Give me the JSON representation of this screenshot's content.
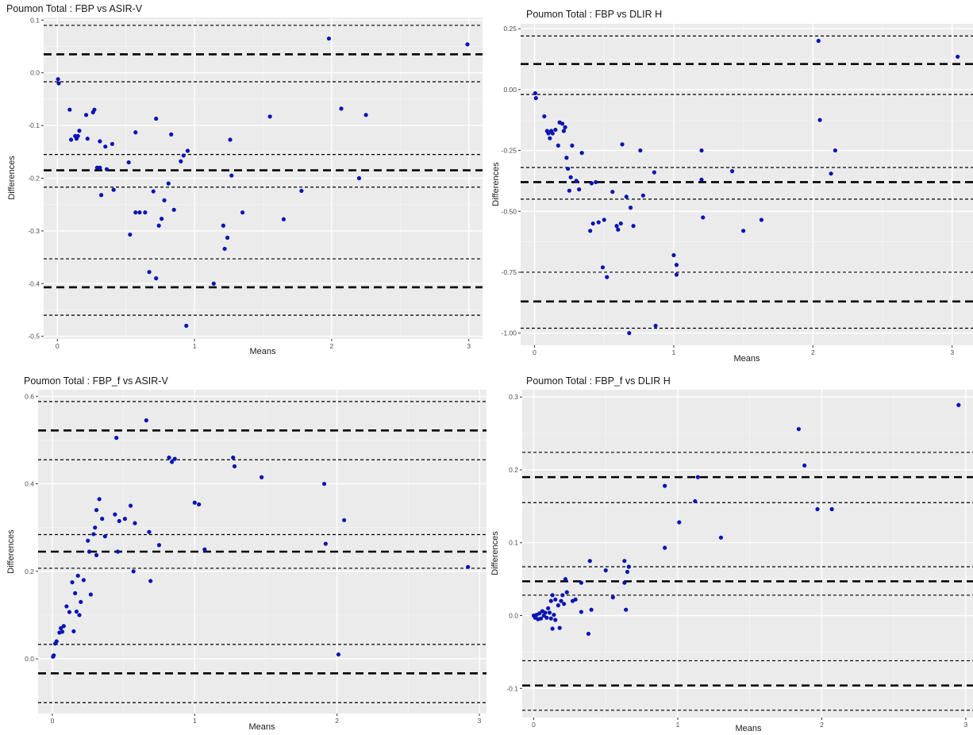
{
  "chart_data": [
    {
      "type": "scatter",
      "title": "Poumon Total : FBP vs ASIR-V",
      "xlabel": "Means",
      "ylabel": "Differences",
      "xlim": [
        -0.1,
        3.1
      ],
      "ylim": [
        -0.505,
        0.105
      ],
      "xticks": [
        0,
        1,
        2,
        3
      ],
      "yticks": [
        0.1,
        0.0,
        -0.1,
        -0.2,
        -0.3,
        -0.4,
        -0.5
      ],
      "ytick_labels": [
        "0.1",
        "0.0",
        "-0.1",
        "-0.2",
        "-0.3",
        "-0.4",
        "-0.5"
      ],
      "hlines": [
        {
          "y": 0.035,
          "style": "thick"
        },
        {
          "y": 0.09,
          "style": "thin"
        },
        {
          "y": -0.017,
          "style": "thin"
        },
        {
          "y": -0.185,
          "style": "thick"
        },
        {
          "y": -0.155,
          "style": "thin"
        },
        {
          "y": -0.217,
          "style": "thin"
        },
        {
          "y": -0.407,
          "style": "thick"
        },
        {
          "y": -0.353,
          "style": "thin"
        },
        {
          "y": -0.46,
          "style": "thin"
        }
      ],
      "points": [
        [
          0.005,
          -0.012
        ],
        [
          0.01,
          -0.02
        ],
        [
          0.09,
          -0.07
        ],
        [
          0.1,
          -0.127
        ],
        [
          0.13,
          -0.12
        ],
        [
          0.14,
          -0.125
        ],
        [
          0.15,
          -0.12
        ],
        [
          0.16,
          -0.11
        ],
        [
          0.21,
          -0.08
        ],
        [
          0.22,
          -0.125
        ],
        [
          0.26,
          -0.075
        ],
        [
          0.27,
          -0.07
        ],
        [
          0.29,
          -0.18
        ],
        [
          0.31,
          -0.13
        ],
        [
          0.31,
          -0.18
        ],
        [
          0.32,
          -0.232
        ],
        [
          0.35,
          -0.14
        ],
        [
          0.36,
          -0.183
        ],
        [
          0.4,
          -0.135
        ],
        [
          0.41,
          -0.222
        ],
        [
          0.52,
          -0.17
        ],
        [
          0.53,
          -0.307
        ],
        [
          0.57,
          -0.113
        ],
        [
          0.57,
          -0.265
        ],
        [
          0.6,
          -0.265
        ],
        [
          0.64,
          -0.265
        ],
        [
          0.67,
          -0.378
        ],
        [
          0.7,
          -0.225
        ],
        [
          0.72,
          -0.087
        ],
        [
          0.72,
          -0.39
        ],
        [
          0.74,
          -0.29
        ],
        [
          0.76,
          -0.277
        ],
        [
          0.78,
          -0.242
        ],
        [
          0.81,
          -0.21
        ],
        [
          0.83,
          -0.117
        ],
        [
          0.85,
          -0.26
        ],
        [
          0.9,
          -0.168
        ],
        [
          0.92,
          -0.157
        ],
        [
          0.94,
          -0.48
        ],
        [
          0.95,
          -0.148
        ],
        [
          1.14,
          -0.4
        ],
        [
          1.21,
          -0.29
        ],
        [
          1.22,
          -0.334
        ],
        [
          1.24,
          -0.313
        ],
        [
          1.26,
          -0.127
        ],
        [
          1.27,
          -0.195
        ],
        [
          1.35,
          -0.265
        ],
        [
          1.55,
          -0.083
        ],
        [
          1.65,
          -0.278
        ],
        [
          1.78,
          -0.224
        ],
        [
          1.98,
          0.065
        ],
        [
          2.07,
          -0.068
        ],
        [
          2.2,
          -0.2
        ],
        [
          2.25,
          -0.08
        ],
        [
          2.99,
          0.054
        ]
      ]
    },
    {
      "type": "scatter",
      "title": "Poumon Total : FBP vs DLIR H",
      "xlabel": "Means",
      "ylabel": "Differences",
      "xlim": [
        -0.1,
        3.15
      ],
      "ylim": [
        -1.05,
        0.27
      ],
      "xticks": [
        0,
        1,
        2,
        3
      ],
      "yticks": [
        0.25,
        0.0,
        -0.25,
        -0.5,
        -0.75,
        -1.0
      ],
      "ytick_labels": [
        "0.25",
        "0.00",
        "-0.25",
        "-0.50",
        "-0.75",
        "-1.00"
      ],
      "hlines": [
        {
          "y": 0.105,
          "style": "thick"
        },
        {
          "y": 0.22,
          "style": "thin"
        },
        {
          "y": -0.02,
          "style": "thin"
        },
        {
          "y": -0.38,
          "style": "thick"
        },
        {
          "y": -0.32,
          "style": "thin"
        },
        {
          "y": -0.45,
          "style": "thin"
        },
        {
          "y": -0.87,
          "style": "thick"
        },
        {
          "y": -0.75,
          "style": "thin"
        },
        {
          "y": -0.98,
          "style": "thin"
        }
      ],
      "points": [
        [
          0.005,
          -0.015
        ],
        [
          0.01,
          -0.035
        ],
        [
          0.07,
          -0.11
        ],
        [
          0.09,
          -0.17
        ],
        [
          0.1,
          -0.18
        ],
        [
          0.11,
          -0.2
        ],
        [
          0.12,
          -0.17
        ],
        [
          0.13,
          -0.18
        ],
        [
          0.15,
          -0.165
        ],
        [
          0.17,
          -0.23
        ],
        [
          0.18,
          -0.135
        ],
        [
          0.2,
          -0.14
        ],
        [
          0.21,
          -0.17
        ],
        [
          0.22,
          -0.155
        ],
        [
          0.23,
          -0.28
        ],
        [
          0.24,
          -0.325
        ],
        [
          0.25,
          -0.415
        ],
        [
          0.26,
          -0.36
        ],
        [
          0.27,
          -0.23
        ],
        [
          0.3,
          -0.375
        ],
        [
          0.32,
          -0.41
        ],
        [
          0.34,
          -0.26
        ],
        [
          0.4,
          -0.58
        ],
        [
          0.41,
          -0.385
        ],
        [
          0.42,
          -0.55
        ],
        [
          0.44,
          -0.38
        ],
        [
          0.46,
          -0.545
        ],
        [
          0.49,
          -0.73
        ],
        [
          0.5,
          -0.535
        ],
        [
          0.52,
          -0.77
        ],
        [
          0.56,
          -0.42
        ],
        [
          0.59,
          -0.56
        ],
        [
          0.6,
          -0.575
        ],
        [
          0.62,
          -0.55
        ],
        [
          0.63,
          -0.225
        ],
        [
          0.66,
          -0.44
        ],
        [
          0.68,
          -1.0
        ],
        [
          0.69,
          -0.485
        ],
        [
          0.71,
          -0.56
        ],
        [
          0.76,
          -0.25
        ],
        [
          0.78,
          -0.435
        ],
        [
          0.86,
          -0.34
        ],
        [
          0.87,
          -0.97
        ],
        [
          1.0,
          -0.68
        ],
        [
          1.02,
          -0.72
        ],
        [
          1.02,
          -0.76
        ],
        [
          1.2,
          -0.25
        ],
        [
          1.2,
          -0.37
        ],
        [
          1.21,
          -0.525
        ],
        [
          1.42,
          -0.335
        ],
        [
          1.5,
          -0.58
        ],
        [
          1.63,
          -0.535
        ],
        [
          2.04,
          0.2
        ],
        [
          2.05,
          -0.125
        ],
        [
          2.13,
          -0.345
        ],
        [
          2.16,
          -0.25
        ],
        [
          3.04,
          0.135
        ]
      ]
    },
    {
      "type": "scatter",
      "title": "Poumon Total : FBP_f vs ASIR-V",
      "xlabel": "Means",
      "ylabel": "Differences",
      "xlim": [
        -0.1,
        3.05
      ],
      "ylim": [
        -0.125,
        0.615
      ],
      "xticks": [
        0,
        1,
        2,
        3
      ],
      "yticks": [
        0.6,
        0.4,
        0.2,
        0.0
      ],
      "ytick_labels": [
        "0.6",
        "0.4",
        "0.2",
        "0.0"
      ],
      "hlines": [
        {
          "y": 0.522,
          "style": "thick"
        },
        {
          "y": 0.588,
          "style": "thin"
        },
        {
          "y": 0.455,
          "style": "thin"
        },
        {
          "y": 0.245,
          "style": "thick"
        },
        {
          "y": 0.284,
          "style": "thin"
        },
        {
          "y": 0.207,
          "style": "thin"
        },
        {
          "y": -0.033,
          "style": "thick"
        },
        {
          "y": 0.033,
          "style": "thin"
        },
        {
          "y": -0.1,
          "style": "thin"
        }
      ],
      "points": [
        [
          0.005,
          0.005
        ],
        [
          0.01,
          0.008
        ],
        [
          0.02,
          0.035
        ],
        [
          0.03,
          0.04
        ],
        [
          0.05,
          0.06
        ],
        [
          0.06,
          0.07
        ],
        [
          0.07,
          0.062
        ],
        [
          0.08,
          0.075
        ],
        [
          0.1,
          0.12
        ],
        [
          0.12,
          0.107
        ],
        [
          0.14,
          0.175
        ],
        [
          0.15,
          0.063
        ],
        [
          0.16,
          0.15
        ],
        [
          0.17,
          0.108
        ],
        [
          0.18,
          0.19
        ],
        [
          0.19,
          0.1
        ],
        [
          0.2,
          0.13
        ],
        [
          0.22,
          0.18
        ],
        [
          0.25,
          0.27
        ],
        [
          0.26,
          0.245
        ],
        [
          0.27,
          0.147
        ],
        [
          0.29,
          0.285
        ],
        [
          0.3,
          0.3
        ],
        [
          0.31,
          0.34
        ],
        [
          0.31,
          0.237
        ],
        [
          0.33,
          0.365
        ],
        [
          0.35,
          0.32
        ],
        [
          0.37,
          0.28
        ],
        [
          0.44,
          0.33
        ],
        [
          0.45,
          0.505
        ],
        [
          0.46,
          0.245
        ],
        [
          0.47,
          0.315
        ],
        [
          0.51,
          0.32
        ],
        [
          0.55,
          0.35
        ],
        [
          0.57,
          0.2
        ],
        [
          0.58,
          0.31
        ],
        [
          0.66,
          0.545
        ],
        [
          0.68,
          0.29
        ],
        [
          0.69,
          0.178
        ],
        [
          0.75,
          0.26
        ],
        [
          0.82,
          0.46
        ],
        [
          0.84,
          0.45
        ],
        [
          0.86,
          0.457
        ],
        [
          1.0,
          0.357
        ],
        [
          1.03,
          0.353
        ],
        [
          1.07,
          0.25
        ],
        [
          1.27,
          0.46
        ],
        [
          1.28,
          0.44
        ],
        [
          1.47,
          0.415
        ],
        [
          1.91,
          0.4
        ],
        [
          1.92,
          0.263
        ],
        [
          2.01,
          0.01
        ],
        [
          2.05,
          0.317
        ],
        [
          2.92,
          0.21
        ]
      ]
    },
    {
      "type": "scatter",
      "title": "Poumon Total : FBP_f vs DLIR H",
      "xlabel": "Means",
      "ylabel": "Differences",
      "xlim": [
        -0.08,
        3.05
      ],
      "ylim": [
        -0.14,
        0.31
      ],
      "xticks": [
        0,
        1,
        2,
        3
      ],
      "yticks": [
        0.3,
        0.2,
        0.1,
        0.0,
        -0.1
      ],
      "ytick_labels": [
        "0.3",
        "0.2",
        "0.1",
        "0.0",
        "-0.1"
      ],
      "hlines": [
        {
          "y": 0.19,
          "style": "thick"
        },
        {
          "y": 0.224,
          "style": "thin"
        },
        {
          "y": 0.155,
          "style": "thin"
        },
        {
          "y": 0.047,
          "style": "thick"
        },
        {
          "y": 0.067,
          "style": "thin"
        },
        {
          "y": 0.028,
          "style": "thin"
        },
        {
          "y": -0.096,
          "style": "thick"
        },
        {
          "y": -0.062,
          "style": "thin"
        },
        {
          "y": -0.13,
          "style": "thin"
        }
      ],
      "points": [
        [
          0.0,
          0.0
        ],
        [
          0.01,
          -0.003
        ],
        [
          0.02,
          0.001
        ],
        [
          0.03,
          -0.005
        ],
        [
          0.04,
          0.003
        ],
        [
          0.05,
          -0.004
        ],
        [
          0.06,
          0.006
        ],
        [
          0.07,
          0.0
        ],
        [
          0.08,
          0.004
        ],
        [
          0.09,
          -0.003
        ],
        [
          0.1,
          0.01
        ],
        [
          0.11,
          0.004
        ],
        [
          0.12,
          0.02
        ],
        [
          0.12,
          -0.004
        ],
        [
          0.13,
          0.028
        ],
        [
          0.13,
          -0.018
        ],
        [
          0.14,
          0.001
        ],
        [
          0.15,
          0.022
        ],
        [
          0.15,
          -0.006
        ],
        [
          0.17,
          0.014
        ],
        [
          0.18,
          -0.017
        ],
        [
          0.19,
          0.02
        ],
        [
          0.2,
          0.028
        ],
        [
          0.21,
          0.016
        ],
        [
          0.22,
          0.05
        ],
        [
          0.23,
          0.032
        ],
        [
          0.27,
          0.02
        ],
        [
          0.29,
          0.022
        ],
        [
          0.33,
          0.005
        ],
        [
          0.33,
          0.045
        ],
        [
          0.38,
          -0.025
        ],
        [
          0.39,
          0.075
        ],
        [
          0.4,
          0.008
        ],
        [
          0.5,
          0.062
        ],
        [
          0.55,
          0.025
        ],
        [
          0.63,
          0.075
        ],
        [
          0.63,
          0.045
        ],
        [
          0.64,
          0.008
        ],
        [
          0.65,
          0.06
        ],
        [
          0.66,
          0.067
        ],
        [
          0.91,
          0.093
        ],
        [
          0.91,
          0.178
        ],
        [
          1.01,
          0.128
        ],
        [
          1.12,
          0.157
        ],
        [
          1.14,
          0.19
        ],
        [
          1.3,
          0.107
        ],
        [
          1.84,
          0.256
        ],
        [
          1.88,
          0.206
        ],
        [
          1.97,
          0.146
        ],
        [
          2.07,
          0.146
        ],
        [
          2.95,
          0.289
        ]
      ]
    }
  ]
}
